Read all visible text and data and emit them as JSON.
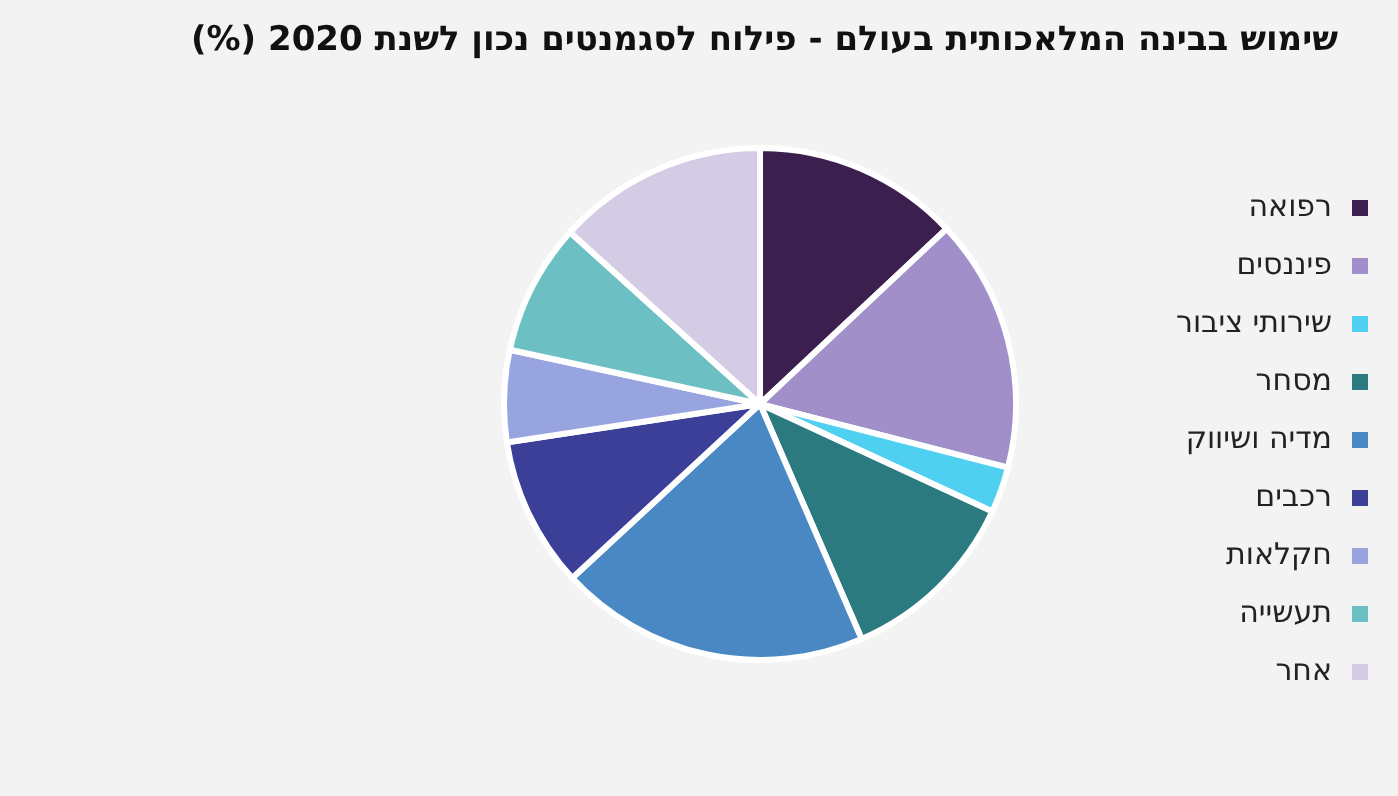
{
  "chart_data": {
    "type": "pie",
    "title": "שימוש בבינה המלאכותית בעולם - פילוח לסגמנטים נכון לשנת 2020 (%)",
    "categories": [
      "רפואה",
      "פיננסים",
      "שירותי ציבור",
      "מסחר",
      "מדיה ושיווק",
      "רכבים",
      "חקלאות",
      "תעשייה",
      "אחר"
    ],
    "values": [
      13.0,
      16.0,
      2.9,
      11.6,
      19.6,
      9.5,
      5.8,
      8.3,
      13.3
    ],
    "colors": [
      "#3b1f4f",
      "#a08fc8",
      "#4fd0f0",
      "#2a7a80",
      "#4a88c4",
      "#3c3f98",
      "#98a4e0",
      "#6cc0c4",
      "#d4cce4"
    ],
    "legend": "right"
  }
}
